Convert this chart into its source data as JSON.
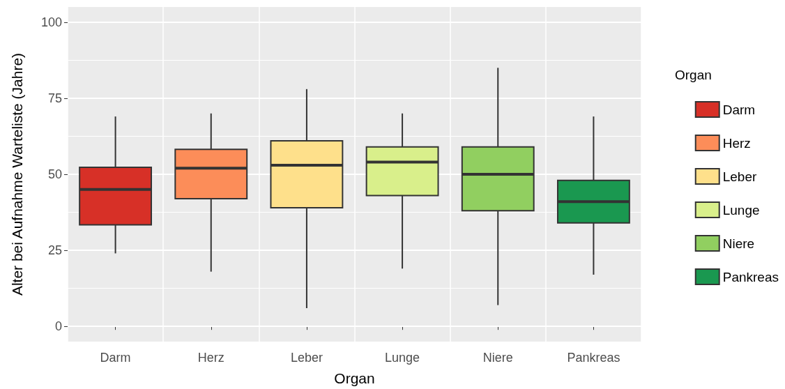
{
  "chart_data": {
    "type": "box",
    "xlabel": "Organ",
    "ylabel": "Alter bei Aufnahme Warteliste (Jahre)",
    "legend_title": "Organ",
    "categories": [
      "Darm",
      "Herz",
      "Leber",
      "Lunge",
      "Niere",
      "Pankreas"
    ],
    "series": [
      {
        "name": "Darm",
        "color": "#d73027",
        "boxes": [
          {
            "low": 24,
            "q1": 33.4,
            "median": 45,
            "q3": 52.3,
            "high": 69
          },
          null,
          null,
          null,
          null,
          null
        ]
      },
      {
        "name": "Herz",
        "color": "#fc8d59",
        "boxes": [
          null,
          {
            "low": 18,
            "q1": 42,
            "median": 52,
            "q3": 58.2,
            "high": 70
          },
          null,
          null,
          null,
          null
        ]
      },
      {
        "name": "Leber",
        "color": "#fee08b",
        "boxes": [
          null,
          null,
          {
            "low": 6,
            "q1": 39,
            "median": 53,
            "q3": 61,
            "high": 78
          },
          null,
          null,
          null
        ]
      },
      {
        "name": "Lunge",
        "color": "#d9ef8b",
        "boxes": [
          null,
          null,
          null,
          {
            "low": 19,
            "q1": 43,
            "median": 54,
            "q3": 59,
            "high": 70
          },
          null,
          null
        ]
      },
      {
        "name": "Niere",
        "color": "#91cf60",
        "boxes": [
          null,
          null,
          null,
          null,
          {
            "low": 7,
            "q1": 38,
            "median": 50,
            "q3": 59,
            "high": 85
          },
          null
        ]
      },
      {
        "name": "Pankreas",
        "color": "#1a9850",
        "boxes": [
          null,
          null,
          null,
          null,
          null,
          {
            "low": 17,
            "q1": 34,
            "median": 41,
            "q3": 48,
            "high": 69
          }
        ]
      }
    ],
    "ylim": [
      -5,
      105
    ],
    "yticks": [
      0,
      25,
      50,
      75,
      100
    ],
    "grid": true,
    "legend": "right"
  }
}
